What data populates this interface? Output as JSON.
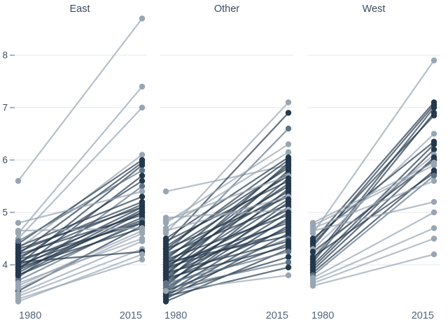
{
  "figure": {
    "background": "#ffffff"
  },
  "chart_data": {
    "type": "slopegraph",
    "title": "",
    "x_labels": [
      "1980",
      "2015"
    ],
    "y_ticks": [
      4,
      5,
      6,
      7,
      8
    ],
    "ylim": [
      3.2,
      8.9
    ],
    "grid": true,
    "grid_color": "#e3e7ea",
    "tick_mark_color": "#93a0ad",
    "colors": {
      "d": "#24384c",
      "l": "#98a5b2",
      "m": "#5e7486"
    },
    "panels": [
      {
        "title": "East",
        "lines": [
          [
            5.6,
            8.7,
            "l"
          ],
          [
            4.6,
            7.4,
            "l"
          ],
          [
            4.5,
            7.0,
            "l"
          ],
          [
            4.3,
            6.1,
            "l"
          ],
          [
            4.4,
            6.0,
            "d"
          ],
          [
            4.2,
            5.95,
            "d"
          ],
          [
            4.0,
            5.9,
            "d"
          ],
          [
            4.45,
            5.8,
            "m"
          ],
          [
            3.9,
            5.7,
            "d"
          ],
          [
            4.1,
            5.6,
            "d"
          ],
          [
            3.75,
            5.5,
            "m"
          ],
          [
            4.8,
            5.4,
            "l"
          ],
          [
            4.35,
            5.3,
            "d"
          ],
          [
            4.25,
            5.2,
            "d"
          ],
          [
            4.15,
            5.15,
            "d"
          ],
          [
            3.95,
            5.1,
            "d"
          ],
          [
            4.3,
            5.1,
            "d"
          ],
          [
            3.85,
            5.05,
            "d"
          ],
          [
            4.05,
            5.0,
            "d"
          ],
          [
            3.8,
            5.0,
            "d"
          ],
          [
            4.2,
            4.95,
            "d"
          ],
          [
            3.9,
            4.9,
            "d"
          ],
          [
            4.0,
            4.85,
            "d"
          ],
          [
            3.7,
            4.85,
            "m"
          ],
          [
            4.1,
            4.8,
            "d"
          ],
          [
            3.8,
            4.8,
            "d"
          ],
          [
            3.5,
            4.75,
            "d"
          ],
          [
            3.95,
            4.7,
            "d"
          ],
          [
            4.65,
            4.7,
            "l"
          ],
          [
            3.6,
            4.65,
            "l"
          ],
          [
            3.55,
            4.6,
            "l"
          ],
          [
            3.65,
            4.5,
            "l"
          ],
          [
            3.45,
            4.45,
            "l"
          ],
          [
            3.4,
            4.3,
            "l"
          ],
          [
            4.05,
            4.25,
            "d"
          ],
          [
            3.3,
            4.2,
            "l"
          ],
          [
            3.35,
            4.1,
            "l"
          ]
        ]
      },
      {
        "title": "Other",
        "lines": [
          [
            5.4,
            5.9,
            "l"
          ],
          [
            4.6,
            7.1,
            "l"
          ],
          [
            4.4,
            6.9,
            "d"
          ],
          [
            4.2,
            6.6,
            "m"
          ],
          [
            4.8,
            6.3,
            "l"
          ],
          [
            4.7,
            6.15,
            "l"
          ],
          [
            4.5,
            6.05,
            "d"
          ],
          [
            4.3,
            6.0,
            "d"
          ],
          [
            3.9,
            5.95,
            "d"
          ],
          [
            4.1,
            5.9,
            "d"
          ],
          [
            4.35,
            5.85,
            "d"
          ],
          [
            3.8,
            5.8,
            "d"
          ],
          [
            4.0,
            5.75,
            "d"
          ],
          [
            4.25,
            5.7,
            "d"
          ],
          [
            4.85,
            5.7,
            "l"
          ],
          [
            3.7,
            5.65,
            "d"
          ],
          [
            4.45,
            5.6,
            "d"
          ],
          [
            3.95,
            5.55,
            "d"
          ],
          [
            4.15,
            5.5,
            "d"
          ],
          [
            3.6,
            5.45,
            "d"
          ],
          [
            4.05,
            5.4,
            "d"
          ],
          [
            3.85,
            5.35,
            "d"
          ],
          [
            4.3,
            5.3,
            "d"
          ],
          [
            4.65,
            5.3,
            "l"
          ],
          [
            3.75,
            5.25,
            "d"
          ],
          [
            3.5,
            5.2,
            "d"
          ],
          [
            4.2,
            5.15,
            "d"
          ],
          [
            3.65,
            5.1,
            "d"
          ],
          [
            3.9,
            5.05,
            "d"
          ],
          [
            4.9,
            5.05,
            "l"
          ],
          [
            3.55,
            5.0,
            "d"
          ],
          [
            4.1,
            4.95,
            "d"
          ],
          [
            3.45,
            4.9,
            "d"
          ],
          [
            3.8,
            4.85,
            "d"
          ],
          [
            4.0,
            4.8,
            "d"
          ],
          [
            3.4,
            4.75,
            "d"
          ],
          [
            3.7,
            4.7,
            "d"
          ],
          [
            3.95,
            4.65,
            "d"
          ],
          [
            3.35,
            4.6,
            "d"
          ],
          [
            4.05,
            4.55,
            "d"
          ],
          [
            3.6,
            4.5,
            "m"
          ],
          [
            3.85,
            4.45,
            "d"
          ],
          [
            3.5,
            4.4,
            "d"
          ],
          [
            3.75,
            4.35,
            "d"
          ],
          [
            3.3,
            4.3,
            "d"
          ],
          [
            3.65,
            4.25,
            "m"
          ],
          [
            3.45,
            4.15,
            "d"
          ],
          [
            3.55,
            4.05,
            "m"
          ],
          [
            3.4,
            3.95,
            "d"
          ],
          [
            3.5,
            3.8,
            "l"
          ]
        ]
      },
      {
        "title": "West",
        "lines": [
          [
            4.6,
            7.9,
            "l"
          ],
          [
            4.45,
            7.1,
            "d"
          ],
          [
            4.35,
            7.05,
            "d"
          ],
          [
            4.1,
            7.0,
            "d"
          ],
          [
            4.05,
            6.9,
            "d"
          ],
          [
            4.4,
            6.85,
            "d"
          ],
          [
            4.3,
            6.5,
            "l"
          ],
          [
            4.5,
            6.35,
            "d"
          ],
          [
            4.0,
            6.3,
            "d"
          ],
          [
            3.95,
            6.2,
            "d"
          ],
          [
            4.2,
            6.1,
            "l"
          ],
          [
            3.9,
            6.05,
            "d"
          ],
          [
            4.25,
            6.0,
            "d"
          ],
          [
            4.8,
            5.95,
            "l"
          ],
          [
            4.75,
            5.9,
            "l"
          ],
          [
            3.85,
            5.8,
            "d"
          ],
          [
            4.15,
            5.75,
            "d"
          ],
          [
            3.8,
            5.7,
            "m"
          ],
          [
            4.7,
            5.6,
            "l"
          ],
          [
            4.65,
            5.2,
            "l"
          ],
          [
            3.75,
            5.0,
            "l"
          ],
          [
            3.7,
            4.7,
            "l"
          ],
          [
            3.65,
            4.5,
            "l"
          ],
          [
            3.6,
            4.2,
            "l"
          ]
        ]
      }
    ]
  }
}
